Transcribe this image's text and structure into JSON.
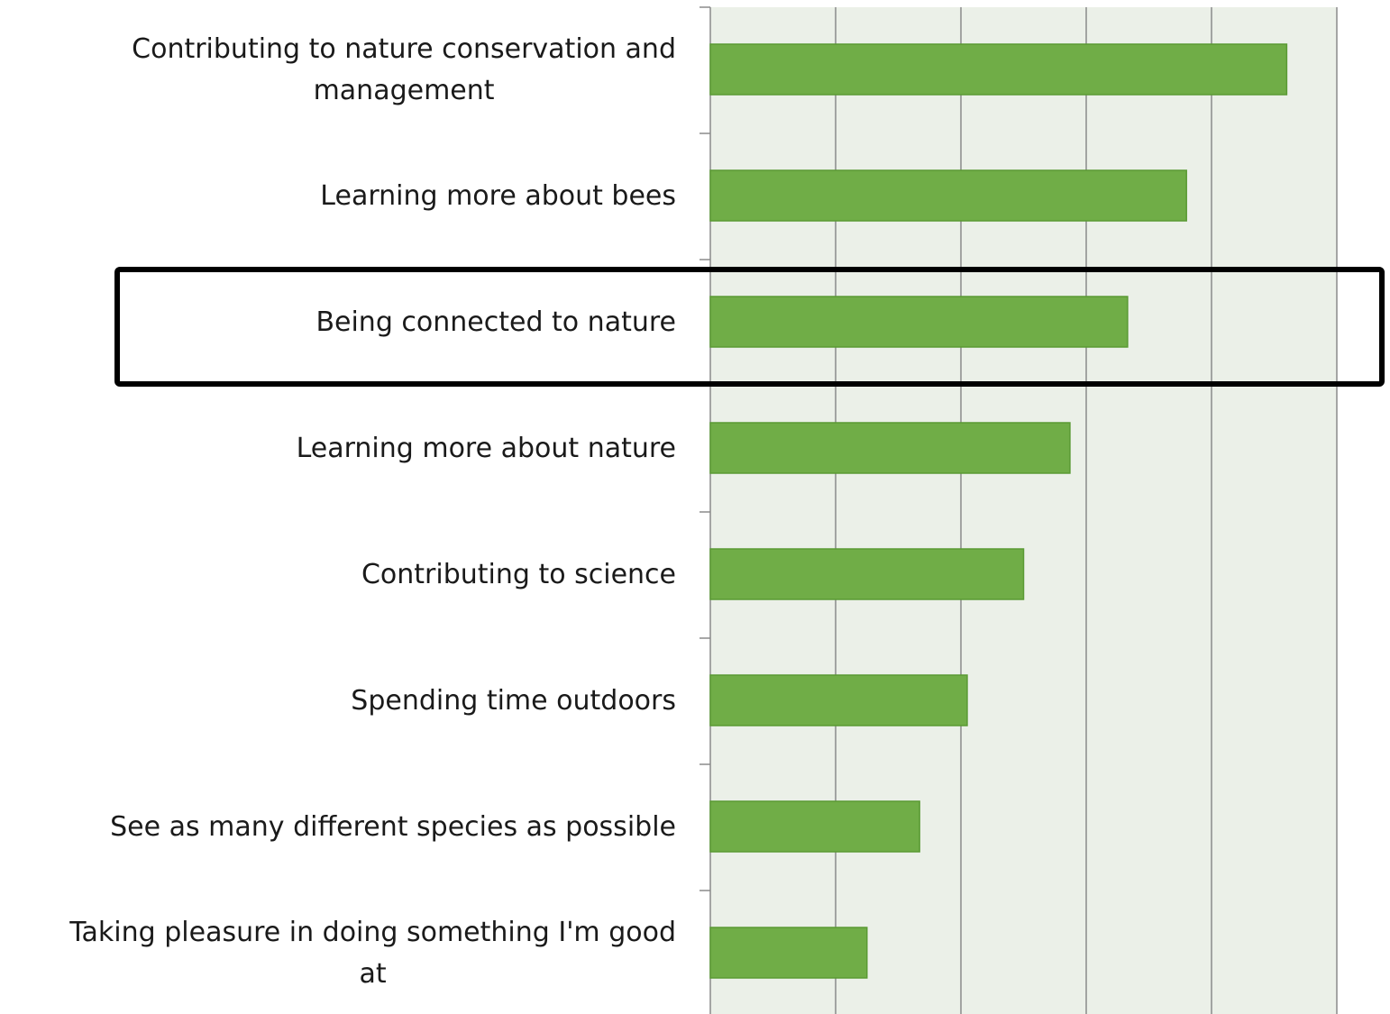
{
  "chart_data": {
    "type": "bar",
    "orientation": "horizontal",
    "categories": [
      "Contributing to nature conservation and management",
      "Learning more about bees",
      "Being connected to nature",
      "Learning more about nature",
      "Contributing to science",
      "Spending time outdoors",
      "See as many different species as possible",
      "Taking pleasure in doing something I'm good at"
    ],
    "values": [
      4.6,
      3.8,
      3.33,
      2.87,
      2.5,
      2.05,
      1.67,
      1.25
    ],
    "xlim": [
      0,
      5
    ],
    "grid": true,
    "highlighted_category": "Being connected to nature",
    "title": "",
    "xlabel": "",
    "ylabel": "",
    "colors": {
      "bar": "#70ad47",
      "bar_edge": "#5a9a34",
      "plot_background": "#ebf0e8",
      "gridline": "#8a8a8a",
      "highlight_box": "#000000"
    }
  }
}
